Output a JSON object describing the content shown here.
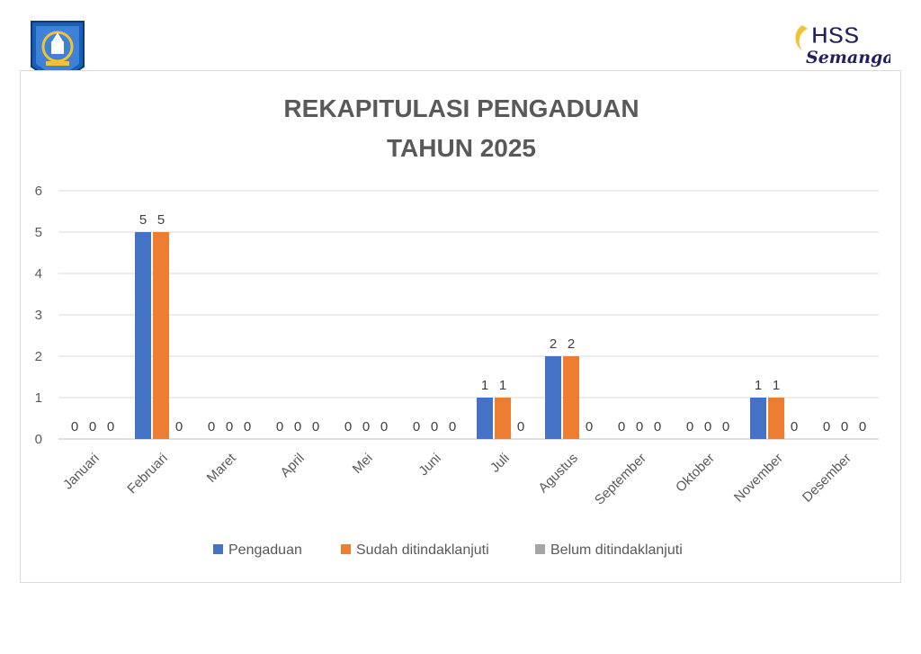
{
  "logos": {
    "left": {
      "name": "Kabupaten Hulu Sungai Selatan emblem",
      "color": "#1a5fb4"
    },
    "right": {
      "text_top": "HSS",
      "text_bottom": "Semangat",
      "color_main": "#23205f",
      "color_accent": "#f2c230"
    }
  },
  "chart_data": {
    "type": "bar",
    "title": [
      "REKAPITULASI PENGADUAN",
      "TAHUN 2025"
    ],
    "categories": [
      "Januari",
      "Februari",
      "Maret",
      "April",
      "Mei",
      "Juni",
      "Juli",
      "Agustus",
      "September",
      "Oktober",
      "November",
      "Desember"
    ],
    "series": [
      {
        "name": "Pengaduan",
        "color": "#4472c4",
        "values": [
          0,
          5,
          0,
          0,
          0,
          0,
          1,
          2,
          0,
          0,
          1,
          0
        ]
      },
      {
        "name": "Sudah ditindaklanjuti",
        "color": "#ed7d31",
        "values": [
          0,
          5,
          0,
          0,
          0,
          0,
          1,
          2,
          0,
          0,
          1,
          0
        ]
      },
      {
        "name": "Belum ditindaklanjuti",
        "color": "#a5a5a5",
        "values": [
          0,
          0,
          0,
          0,
          0,
          0,
          0,
          0,
          0,
          0,
          0,
          0
        ]
      }
    ],
    "ylim": [
      0,
      6
    ],
    "yticks": [
      0,
      1,
      2,
      3,
      4,
      5,
      6
    ],
    "grid": true,
    "legend_position": "bottom",
    "data_labels": true
  }
}
